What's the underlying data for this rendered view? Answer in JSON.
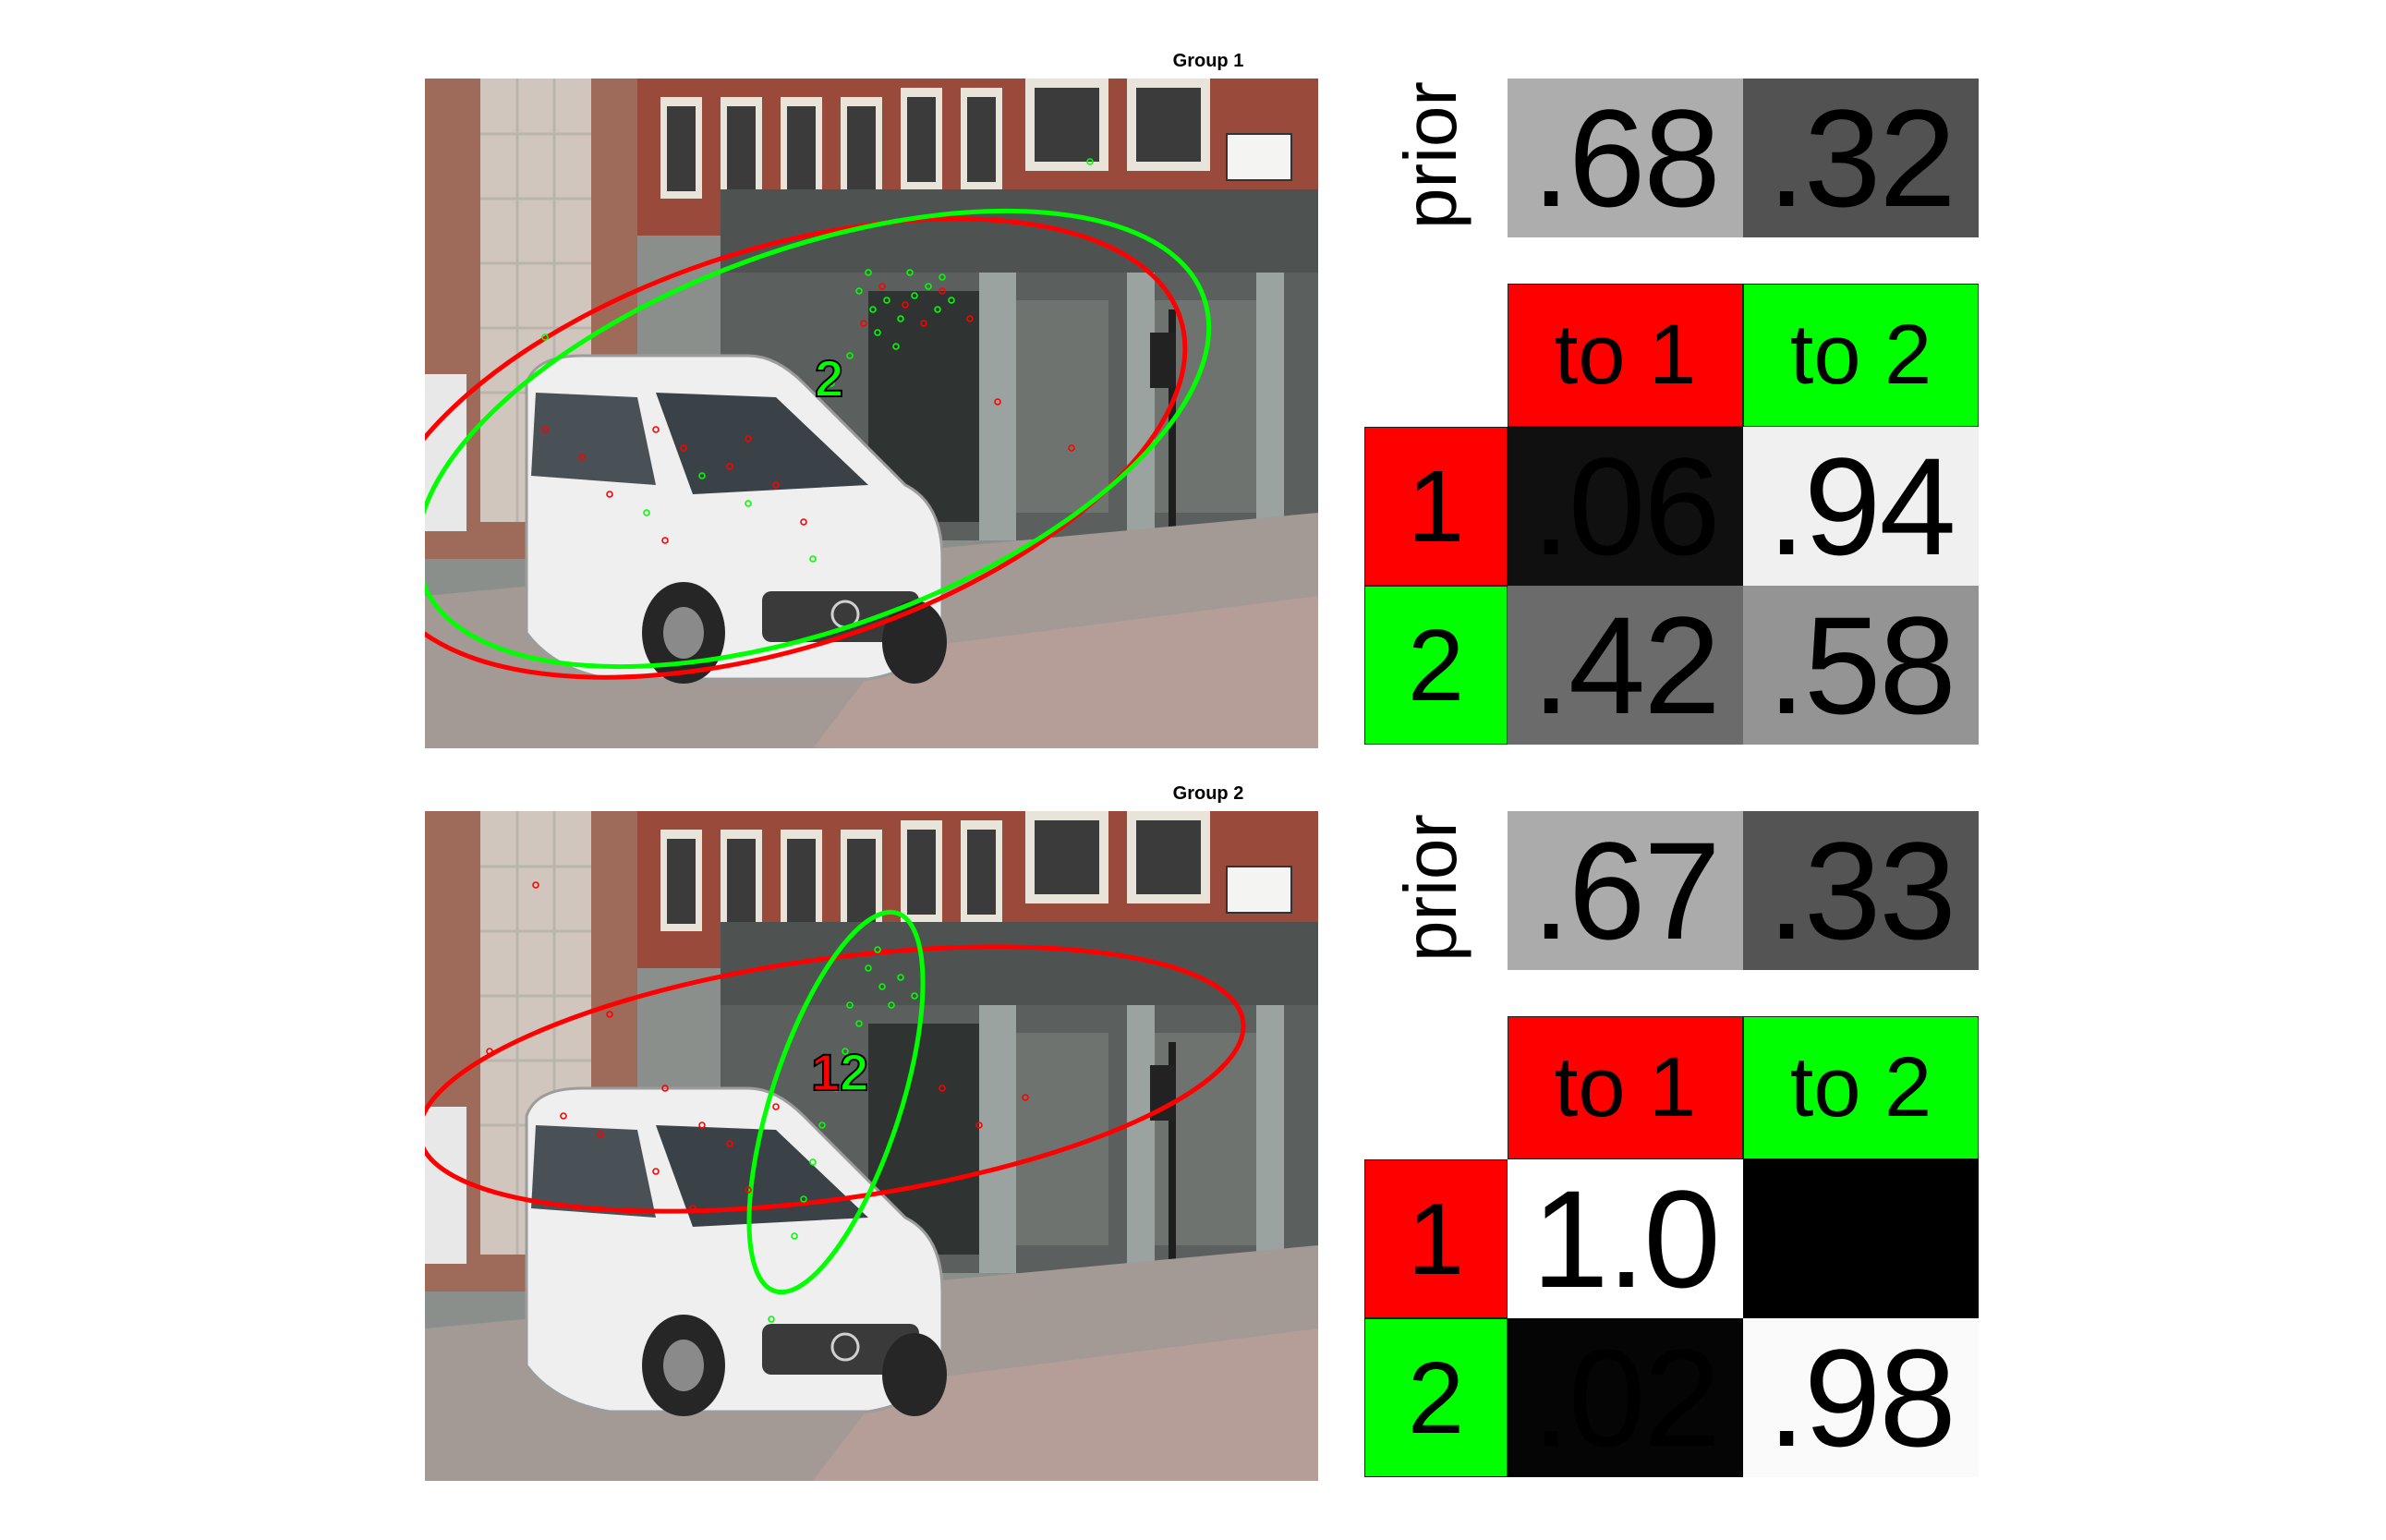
{
  "colors": {
    "cluster_1": "#ff0000",
    "cluster_2": "#00ff00"
  },
  "groups": [
    {
      "title": "Group 1",
      "scene_labels": [
        "2"
      ],
      "prior": {
        "label": "prior",
        "values": [
          ".68",
          ".32"
        ],
        "shades": [
          "#adadad",
          "#525252"
        ]
      },
      "transitions": {
        "col_headers": [
          "to 1",
          "to 2"
        ],
        "row_headers": [
          "1",
          "2"
        ],
        "cells": [
          [
            {
              "text": ".06",
              "shade": "#101010"
            },
            {
              "text": ".94",
              "shade": "#f0f0f0"
            }
          ],
          [
            {
              "text": ".42",
              "shade": "#6b6b6b"
            },
            {
              "text": ".58",
              "shade": "#949494"
            }
          ]
        ]
      }
    },
    {
      "title": "Group 2",
      "scene_labels": [
        "1",
        "2"
      ],
      "prior": {
        "label": "prior",
        "values": [
          ".67",
          ".33"
        ],
        "shades": [
          "#ababab",
          "#545454"
        ]
      },
      "transitions": {
        "col_headers": [
          "to 1",
          "to 2"
        ],
        "row_headers": [
          "1",
          "2"
        ],
        "cells": [
          [
            {
              "text": "1.0",
              "shade": "#ffffff"
            },
            {
              "text": "",
              "shade": "#000000"
            }
          ],
          [
            {
              "text": ".02",
              "shade": "#050505"
            },
            {
              "text": ".98",
              "shade": "#fafafa"
            }
          ]
        ]
      }
    }
  ]
}
